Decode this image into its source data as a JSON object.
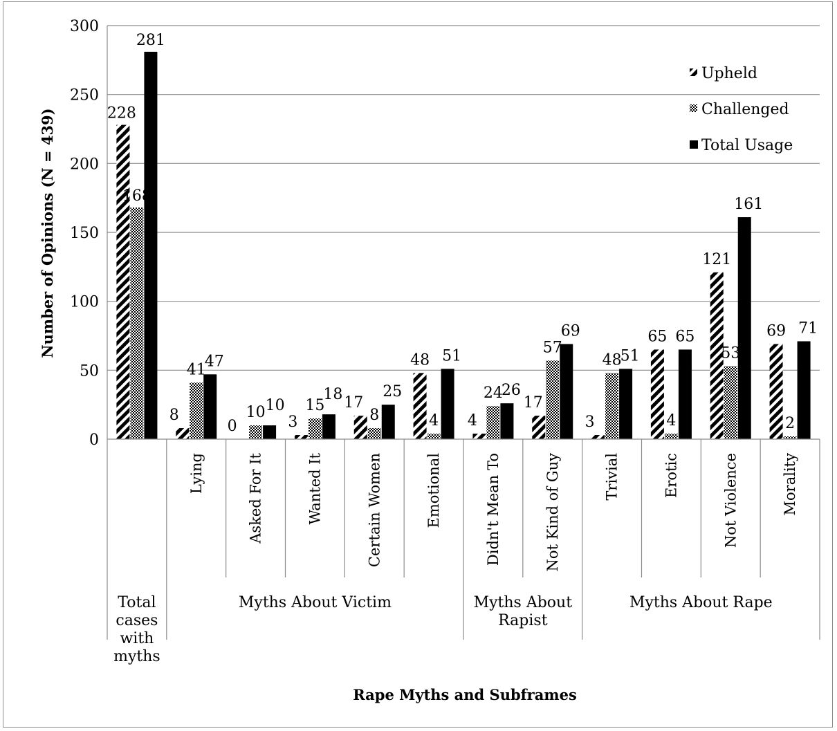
{
  "chart_data": {
    "type": "bar",
    "xlabel": "Rape Myths and Subframes",
    "ylabel": "Number of Opinions (N = 439)",
    "ylim": [
      0,
      300
    ],
    "yticks": [
      0,
      50,
      100,
      150,
      200,
      250,
      300
    ],
    "grid": true,
    "legend_position": "top-right",
    "categories": [
      "",
      "Lying",
      "Asked For It",
      "Wanted It",
      "Certain Women",
      "Emotional",
      "Didn't Mean To",
      "Not Kind of Guy",
      "Trivial",
      "Erotic",
      "Not Violence",
      "Morality"
    ],
    "groups": [
      {
        "label": "Total cases with myths",
        "lines": [
          "Total",
          "cases",
          "with",
          "myths"
        ],
        "start": 0,
        "end": 0
      },
      {
        "label": "Myths About Victim",
        "lines": [
          "Myths About Victim"
        ],
        "start": 1,
        "end": 5
      },
      {
        "label": "Myths About Rapist",
        "lines": [
          "Myths About",
          "Rapist"
        ],
        "start": 6,
        "end": 7
      },
      {
        "label": "Myths About Rape",
        "lines": [
          "Myths About Rape"
        ],
        "start": 8,
        "end": 11
      }
    ],
    "series": [
      {
        "name": "Upheld",
        "pattern": "diagonal-hatch",
        "values": [
          228,
          8,
          0,
          3,
          17,
          48,
          4,
          17,
          3,
          65,
          121,
          69
        ]
      },
      {
        "name": "Challenged",
        "pattern": "checker",
        "values": [
          168,
          41,
          10,
          15,
          8,
          4,
          24,
          57,
          48,
          4,
          53,
          2
        ]
      },
      {
        "name": "Total Usage",
        "pattern": "solid",
        "color": "#000000",
        "values": [
          281,
          47,
          10,
          18,
          25,
          51,
          26,
          69,
          51,
          65,
          161,
          71
        ]
      }
    ]
  }
}
